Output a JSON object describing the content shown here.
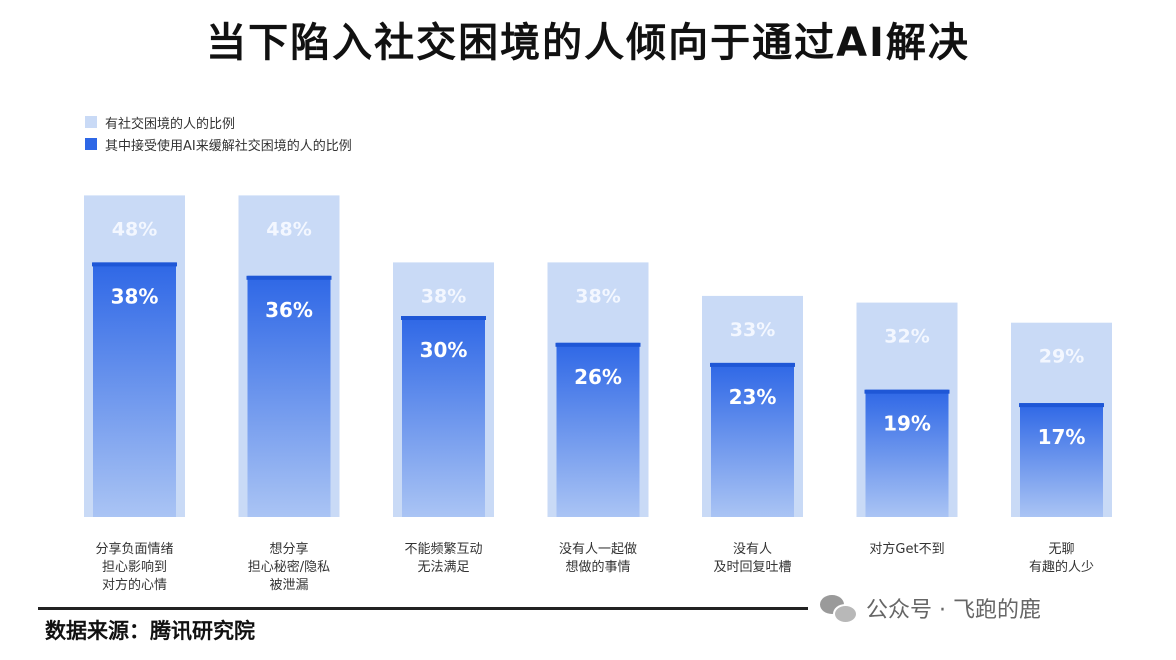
{
  "page": {
    "title": "当下陷入社交困境的人倾向于通过AI解决",
    "source": "数据来源：腾讯研究院",
    "watermark": "公众号 · 飞跑的鹿",
    "watermark_icon": "wechat-icon"
  },
  "colors": {
    "outer_bar": "#c9daf6",
    "inner_bar_top": "#2e67e6",
    "inner_bar_bottom": "#aac4f4",
    "inner_cap": "#1f57d6",
    "outer_label": "#f3f7ff",
    "inner_label": "#ffffff"
  },
  "chart_data": {
    "type": "bar",
    "title": "当下陷入社交困境的人倾向于通过AI解决",
    "categories": [
      [
        "分享负面情绪",
        "担心影响到",
        "对方的心情"
      ],
      [
        "想分享",
        "担心秘密/隐私",
        "被泄漏"
      ],
      [
        "不能频繁互动",
        "无法满足"
      ],
      [
        "没有人一起做",
        "想做的事情"
      ],
      [
        "没有人",
        "及时回复吐槽"
      ],
      [
        "对方Get不到"
      ],
      [
        "无聊",
        "有趣的人少"
      ]
    ],
    "series": [
      {
        "name": "有社交困境的人的比例",
        "values": [
          48,
          48,
          38,
          38,
          33,
          32,
          29
        ],
        "labels": [
          "48%",
          "48%",
          "38%",
          "38%",
          "33%",
          "32%",
          "29%"
        ]
      },
      {
        "name": "其中接受使用AI来缓解社交困境的人的比例",
        "values": [
          38,
          36,
          30,
          26,
          23,
          19,
          17
        ],
        "labels": [
          "38%",
          "36%",
          "30%",
          "26%",
          "23%",
          "19%",
          "17%"
        ]
      }
    ],
    "ylim": [
      0,
      48
    ],
    "legend": "top-left",
    "grid": false
  }
}
